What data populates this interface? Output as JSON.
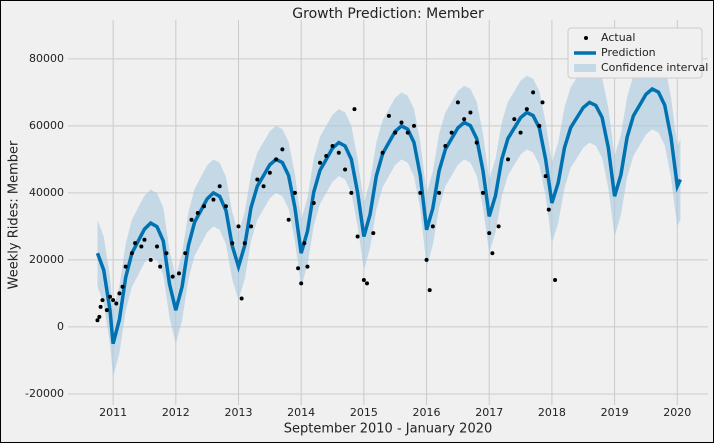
{
  "chart_data": {
    "type": "line",
    "title": "Growth Prediction: Member",
    "xlabel": "September 2010 - January 2020",
    "ylabel": "Weekly Rides: Member",
    "xlim": [
      2010.28,
      2020.49
    ],
    "xticks": [
      2011,
      2012,
      2013,
      2014,
      2015,
      2016,
      2017,
      2018,
      2019,
      2020
    ],
    "ylim": [
      -23300,
      91600
    ],
    "yticks": [
      -20000,
      0,
      20000,
      40000,
      60000,
      80000
    ],
    "grid": true,
    "legend": "upper right",
    "series": [
      {
        "name": "Actual",
        "color": "#000000",
        "x": [
          2010.75,
          2010.78,
          2010.8,
          2010.83,
          2010.9,
          2010.95,
          2011.0,
          2011.05,
          2011.1,
          2011.15,
          2011.2,
          2011.3,
          2011.35,
          2011.45,
          2011.5,
          2011.6,
          2011.7,
          2011.75,
          2011.85,
          2011.95,
          2012.05,
          2012.15,
          2012.25,
          2012.35,
          2012.45,
          2012.6,
          2012.7,
          2012.8,
          2012.9,
          2013.0,
          2013.05,
          2013.1,
          2013.2,
          2013.3,
          2013.4,
          2013.5,
          2013.6,
          2013.7,
          2013.8,
          2013.9,
          2013.95,
          2014.0,
          2014.05,
          2014.1,
          2014.2,
          2014.3,
          2014.4,
          2014.5,
          2014.6,
          2014.7,
          2014.8,
          2014.85,
          2014.9,
          2015.0,
          2015.05,
          2015.15,
          2015.3,
          2015.4,
          2015.5,
          2015.6,
          2015.7,
          2015.8,
          2015.9,
          2016.0,
          2016.05,
          2016.1,
          2016.2,
          2016.3,
          2016.4,
          2016.5,
          2016.6,
          2016.7,
          2016.8,
          2016.9,
          2017.0,
          2017.05,
          2017.15,
          2017.3,
          2017.4,
          2017.5,
          2017.6,
          2017.7,
          2017.8,
          2017.85,
          2017.9,
          2017.95,
          2018.05
        ],
        "values": [
          2000,
          3000,
          6000,
          8000,
          5000,
          9000,
          8000,
          7000,
          10000,
          12000,
          18000,
          22000,
          25000,
          24000,
          26000,
          20000,
          24000,
          18000,
          22000,
          15000,
          16000,
          22000,
          32000,
          34000,
          36000,
          38000,
          42000,
          36000,
          25000,
          30000,
          8500,
          25000,
          30000,
          44000,
          42000,
          46000,
          50000,
          53000,
          32000,
          40000,
          17500,
          13000,
          25000,
          18000,
          37000,
          49000,
          51000,
          54000,
          52000,
          47000,
          40000,
          65000,
          27000,
          14000,
          13000,
          28000,
          52000,
          63000,
          58000,
          61000,
          58000,
          60000,
          40000,
          20000,
          11000,
          30000,
          40000,
          54000,
          58000,
          67000,
          62000,
          64000,
          55000,
          40000,
          28000,
          22000,
          30000,
          50000,
          62000,
          58000,
          65000,
          70000,
          60000,
          67000,
          45000,
          35000,
          14000
        ]
      },
      {
        "name": "Prediction",
        "color": "#0072b2",
        "x": [
          2010.75,
          2010.85,
          2010.95,
          2011.0,
          2011.1,
          2011.2,
          2011.3,
          2011.4,
          2011.5,
          2011.6,
          2011.7,
          2011.8,
          2011.9,
          2012.0,
          2012.1,
          2012.2,
          2012.3,
          2012.4,
          2012.5,
          2012.6,
          2012.7,
          2012.8,
          2012.9,
          2013.0,
          2013.1,
          2013.2,
          2013.3,
          2013.4,
          2013.5,
          2013.6,
          2013.7,
          2013.8,
          2013.9,
          2014.0,
          2014.1,
          2014.2,
          2014.3,
          2014.4,
          2014.5,
          2014.6,
          2014.7,
          2014.8,
          2014.9,
          2015.0,
          2015.1,
          2015.2,
          2015.3,
          2015.4,
          2015.5,
          2015.6,
          2015.7,
          2015.8,
          2015.9,
          2016.0,
          2016.1,
          2016.2,
          2016.3,
          2016.4,
          2016.5,
          2016.6,
          2016.7,
          2016.8,
          2016.9,
          2017.0,
          2017.1,
          2017.2,
          2017.3,
          2017.4,
          2017.5,
          2017.6,
          2017.7,
          2017.8,
          2017.9,
          2018.0,
          2018.1,
          2018.2,
          2018.3,
          2018.4,
          2018.5,
          2018.6,
          2018.7,
          2018.8,
          2018.9,
          2019.0,
          2019.1,
          2019.2,
          2019.3,
          2019.4,
          2019.5,
          2019.6,
          2019.7,
          2019.8,
          2019.9,
          2020.0,
          2020.05
        ],
        "values": [
          22000,
          17000,
          5000,
          -5000,
          2200,
          14800,
          22000,
          25600,
          29200,
          31000,
          29900,
          25600,
          12800,
          5000,
          12000,
          24250,
          31250,
          34750,
          38250,
          40000,
          38950,
          34750,
          24250,
          18000,
          24400,
          35600,
          42000,
          45200,
          48400,
          50000,
          49040,
          45200,
          35600,
          22000,
          28600,
          40150,
          46750,
          50050,
          53350,
          55000,
          54010,
          50050,
          40150,
          27000,
          33600,
          45150,
          51750,
          55050,
          58350,
          60000,
          59010,
          55050,
          45150,
          29000,
          35400,
          46600,
          53000,
          56200,
          59400,
          61000,
          60040,
          56200,
          46600,
          33000,
          39200,
          50050,
          56250,
          59350,
          62450,
          64000,
          63070,
          59350,
          50050,
          37000,
          43000,
          53500,
          59500,
          62500,
          65500,
          67000,
          66100,
          62500,
          53500,
          39000,
          45400,
          56600,
          63000,
          66200,
          69400,
          71000,
          70040,
          66200,
          56600,
          42000,
          44000
        ]
      },
      {
        "name": "Confidence interval",
        "color": "#a6c8e0",
        "upper": [
          32000,
          27000,
          15000,
          5000,
          12200,
          24800,
          32000,
          35600,
          39200,
          41000,
          39900,
          35600,
          22800,
          15000,
          22000,
          34250,
          41250,
          44750,
          48250,
          50000,
          48950,
          44750,
          34250,
          28000,
          34400,
          45600,
          52000,
          55200,
          58400,
          60000,
          59040,
          55200,
          45600,
          32000,
          38600,
          50150,
          56750,
          60050,
          63350,
          65000,
          64010,
          60050,
          50150,
          37000,
          43600,
          55150,
          61750,
          65050,
          68350,
          70000,
          69010,
          65050,
          55150,
          40000,
          46400,
          57600,
          64000,
          67200,
          70400,
          72000,
          71040,
          67200,
          57600,
          44000,
          50200,
          61050,
          67250,
          70350,
          73450,
          75000,
          74070,
          70350,
          61050,
          49000,
          55000,
          65500,
          71500,
          74500,
          77500,
          79000,
          78100,
          74500,
          65500,
          51000,
          57400,
          68600,
          75000,
          78200,
          81400,
          83000,
          82040,
          78200,
          68600,
          54000,
          56000
        ],
        "lower": [
          12000,
          7000,
          -5000,
          -15000,
          -7800,
          4800,
          12000,
          15600,
          19200,
          21000,
          19900,
          15600,
          2800,
          -5000,
          2000,
          14250,
          21250,
          24750,
          28250,
          30000,
          28950,
          24750,
          14250,
          8000,
          14400,
          25600,
          32000,
          35200,
          38400,
          40000,
          39040,
          35200,
          25600,
          12000,
          18600,
          30150,
          36750,
          40050,
          43350,
          45000,
          44010,
          40050,
          30150,
          17000,
          23600,
          35150,
          41750,
          45050,
          48350,
          50000,
          49010,
          45050,
          35150,
          18000,
          24400,
          35600,
          42000,
          45200,
          48400,
          50000,
          49040,
          45200,
          35600,
          22000,
          28200,
          39050,
          45250,
          48350,
          51450,
          53000,
          52070,
          48350,
          39050,
          25000,
          31000,
          41500,
          47500,
          50500,
          53500,
          55000,
          54100,
          50500,
          41500,
          27000,
          33400,
          44600,
          51000,
          54200,
          57400,
          59000,
          58040,
          54200,
          44600,
          30000,
          32000
        ]
      }
    ]
  }
}
